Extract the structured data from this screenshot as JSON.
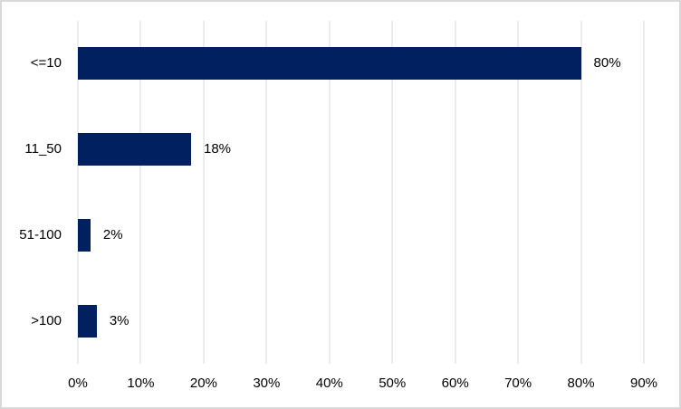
{
  "chart_data": {
    "type": "bar",
    "orientation": "horizontal",
    "title": "",
    "xlabel": "",
    "ylabel": "",
    "categories": [
      "<=10",
      "11_50",
      "51-100",
      ">100"
    ],
    "values": [
      80,
      18,
      2,
      3
    ],
    "data_labels": [
      "80%",
      "18%",
      "2%",
      "3%"
    ],
    "xlim": [
      0,
      90
    ],
    "x_tick_values": [
      0,
      10,
      20,
      30,
      40,
      50,
      60,
      70,
      80,
      90
    ],
    "x_ticks": [
      "0%",
      "10%",
      "20%",
      "30%",
      "40%",
      "50%",
      "60%",
      "70%",
      "80%",
      "90%"
    ],
    "grid": "vertical",
    "legend": "none",
    "colors": {
      "bar": "#002060",
      "gridline": "#d9d9d9",
      "chart_border": "#d9d9d9",
      "background": "#ffffff",
      "text": "#000000"
    }
  }
}
